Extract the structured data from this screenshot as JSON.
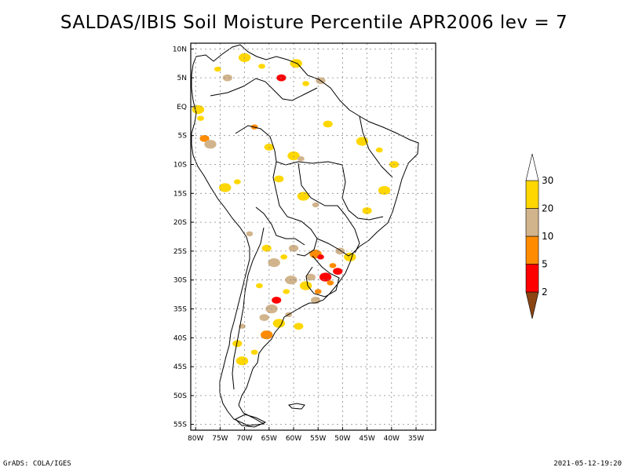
{
  "title": "SALDAS/IBIS Soil Moisture Percentile APR2006 lev = 7",
  "footer": {
    "left": "GrADS: COLA/IGES",
    "right": "2021-05-12-19:20"
  },
  "map": {
    "type": "filled-contour-map",
    "region": "South America",
    "lon_range": [
      -81,
      -31
    ],
    "lat_range": [
      -56,
      11
    ],
    "lon_ticks": [
      {
        "value": -80,
        "label": "80W"
      },
      {
        "value": -75,
        "label": "75W"
      },
      {
        "value": -70,
        "label": "70W"
      },
      {
        "value": -65,
        "label": "65W"
      },
      {
        "value": -60,
        "label": "60W"
      },
      {
        "value": -55,
        "label": "55W"
      },
      {
        "value": -50,
        "label": "50W"
      },
      {
        "value": -45,
        "label": "45W"
      },
      {
        "value": -40,
        "label": "40W"
      },
      {
        "value": -35,
        "label": "35W"
      }
    ],
    "lat_ticks": [
      {
        "value": 10,
        "label": "10N"
      },
      {
        "value": 5,
        "label": "5N"
      },
      {
        "value": 0,
        "label": "EQ"
      },
      {
        "value": -5,
        "label": "5S"
      },
      {
        "value": -10,
        "label": "10S"
      },
      {
        "value": -15,
        "label": "15S"
      },
      {
        "value": -20,
        "label": "20S"
      },
      {
        "value": -25,
        "label": "25S"
      },
      {
        "value": -30,
        "label": "30S"
      },
      {
        "value": -35,
        "label": "35S"
      },
      {
        "value": -40,
        "label": "40S"
      },
      {
        "value": -45,
        "label": "45S"
      },
      {
        "value": -50,
        "label": "50S"
      },
      {
        "value": -55,
        "label": "55S"
      }
    ],
    "grid": true
  },
  "legend": {
    "levels": [
      "2",
      "5",
      "10",
      "20",
      "30"
    ],
    "colors": [
      "#8b4513",
      "#ff0000",
      "#ff8c00",
      "#d2b48c",
      "#ffd700",
      "#ffffff"
    ]
  },
  "patches": [
    {
      "lon": -75.5,
      "lat": 6.5,
      "color": "#ffd700"
    },
    {
      "lon": -73.5,
      "lat": 5.0,
      "color": "#d2b48c"
    },
    {
      "lon": -70.0,
      "lat": 8.5,
      "color": "#ffd700"
    },
    {
      "lon": -66.5,
      "lat": 7.0,
      "color": "#ffd700"
    },
    {
      "lon": -62.5,
      "lat": 5.0,
      "color": "#ff0000"
    },
    {
      "lon": -59.5,
      "lat": 7.5,
      "color": "#ffd700"
    },
    {
      "lon": -57.5,
      "lat": 4.0,
      "color": "#ffd700"
    },
    {
      "lon": -54.5,
      "lat": 4.5,
      "color": "#d2b48c"
    },
    {
      "lon": -79.5,
      "lat": -0.5,
      "color": "#ffd700"
    },
    {
      "lon": -79.0,
      "lat": -2.0,
      "color": "#ffd700"
    },
    {
      "lon": -78.2,
      "lat": -5.5,
      "color": "#ff8c00"
    },
    {
      "lon": -77.0,
      "lat": -6.5,
      "color": "#d2b48c"
    },
    {
      "lon": -68.0,
      "lat": -3.5,
      "color": "#ff8c00"
    },
    {
      "lon": -65.0,
      "lat": -7.0,
      "color": "#ffd700"
    },
    {
      "lon": -60.0,
      "lat": -8.5,
      "color": "#ffd700"
    },
    {
      "lon": -58.5,
      "lat": -9.0,
      "color": "#d2b48c"
    },
    {
      "lon": -53.0,
      "lat": -3.0,
      "color": "#ffd700"
    },
    {
      "lon": -46.0,
      "lat": -6.0,
      "color": "#ffd700"
    },
    {
      "lon": -42.5,
      "lat": -7.5,
      "color": "#ffd700"
    },
    {
      "lon": -39.5,
      "lat": -10.0,
      "color": "#ffd700"
    },
    {
      "lon": -74.0,
      "lat": -14.0,
      "color": "#ffd700"
    },
    {
      "lon": -71.5,
      "lat": -13.0,
      "color": "#ffd700"
    },
    {
      "lon": -63.0,
      "lat": -12.5,
      "color": "#ffd700"
    },
    {
      "lon": -58.0,
      "lat": -15.5,
      "color": "#ffd700"
    },
    {
      "lon": -55.5,
      "lat": -17.0,
      "color": "#d2b48c"
    },
    {
      "lon": -45.0,
      "lat": -18.0,
      "color": "#ffd700"
    },
    {
      "lon": -41.5,
      "lat": -14.5,
      "color": "#ffd700"
    },
    {
      "lon": -69.0,
      "lat": -22.0,
      "color": "#d2b48c"
    },
    {
      "lon": -65.5,
      "lat": -24.5,
      "color": "#ffd700"
    },
    {
      "lon": -64.0,
      "lat": -27.0,
      "color": "#d2b48c"
    },
    {
      "lon": -62.0,
      "lat": -26.0,
      "color": "#ffd700"
    },
    {
      "lon": -60.0,
      "lat": -24.5,
      "color": "#d2b48c"
    },
    {
      "lon": -55.5,
      "lat": -25.5,
      "color": "#ff8c00"
    },
    {
      "lon": -54.5,
      "lat": -26.0,
      "color": "#ff0000"
    },
    {
      "lon": -50.5,
      "lat": -25.0,
      "color": "#d2b48c"
    },
    {
      "lon": -48.5,
      "lat": -26.0,
      "color": "#ffd700"
    },
    {
      "lon": -52.0,
      "lat": -27.5,
      "color": "#ff8c00"
    },
    {
      "lon": -51.0,
      "lat": -28.5,
      "color": "#ff0000"
    },
    {
      "lon": -53.5,
      "lat": -29.5,
      "color": "#ff0000"
    },
    {
      "lon": -52.5,
      "lat": -30.5,
      "color": "#ff8c00"
    },
    {
      "lon": -56.5,
      "lat": -29.5,
      "color": "#d2b48c"
    },
    {
      "lon": -57.5,
      "lat": -31.0,
      "color": "#ffd700"
    },
    {
      "lon": -55.0,
      "lat": -32.0,
      "color": "#ff8c00"
    },
    {
      "lon": -55.5,
      "lat": -33.5,
      "color": "#d2b48c"
    },
    {
      "lon": -60.5,
      "lat": -30.0,
      "color": "#d2b48c"
    },
    {
      "lon": -61.5,
      "lat": -32.0,
      "color": "#ffd700"
    },
    {
      "lon": -63.5,
      "lat": -33.5,
      "color": "#ff0000"
    },
    {
      "lon": -64.5,
      "lat": -35.0,
      "color": "#d2b48c"
    },
    {
      "lon": -67.0,
      "lat": -31.0,
      "color": "#ffd700"
    },
    {
      "lon": -66.0,
      "lat": -36.5,
      "color": "#d2b48c"
    },
    {
      "lon": -63.0,
      "lat": -37.5,
      "color": "#ffd700"
    },
    {
      "lon": -61.0,
      "lat": -36.0,
      "color": "#d2b48c"
    },
    {
      "lon": -59.0,
      "lat": -38.0,
      "color": "#ffd700"
    },
    {
      "lon": -65.5,
      "lat": -39.5,
      "color": "#ff8c00"
    },
    {
      "lon": -70.5,
      "lat": -38.0,
      "color": "#d2b48c"
    },
    {
      "lon": -71.5,
      "lat": -41.0,
      "color": "#ffd700"
    },
    {
      "lon": -70.5,
      "lat": -44.0,
      "color": "#ffd700"
    },
    {
      "lon": -68.0,
      "lat": -42.5,
      "color": "#ffd700"
    }
  ]
}
